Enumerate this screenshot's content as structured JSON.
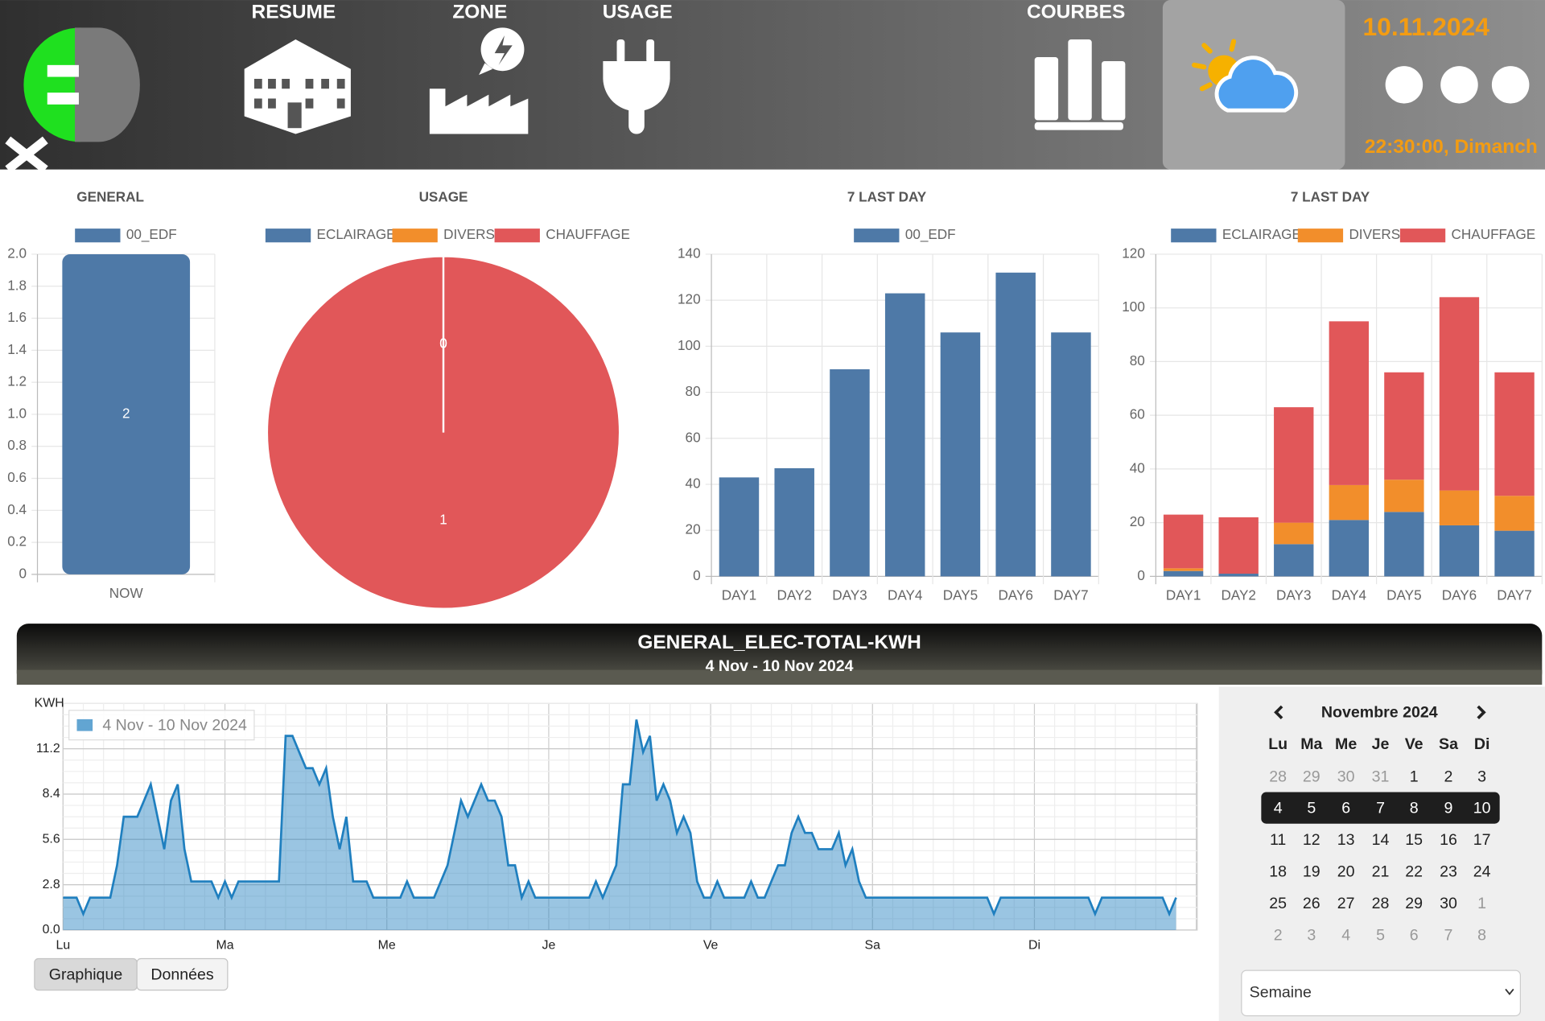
{
  "header": {
    "nav": [
      "RESUME",
      "ZONE",
      "USAGE",
      "COURBES"
    ],
    "date": "10.11.2024",
    "time": "22:30:00, Dimanch"
  },
  "chart_data": [
    {
      "type": "bar",
      "title": "GENERAL",
      "categories": [
        "NOW"
      ],
      "series": [
        {
          "name": "00_EDF",
          "color": "#4e79a7",
          "values": [
            2
          ]
        }
      ],
      "ylim": [
        0,
        2
      ],
      "yticks": [
        0,
        0.2,
        0.4,
        0.6,
        0.8,
        {
          "value": 1,
          "label": "1.0"
        },
        1.2,
        1.4,
        1.6,
        1.8,
        {
          "value": 2,
          "label": "2.0"
        }
      ],
      "grid": true,
      "data_labels": true
    },
    {
      "type": "pie",
      "title": "USAGE",
      "categories": [
        "ECLAIRAGE",
        "DIVERS",
        "CHAUFFAGE"
      ],
      "values": [
        0,
        0,
        1
      ],
      "colors": [
        "#4e79a7",
        "#f28e2b",
        "#e15759"
      ],
      "data_labels": true
    },
    {
      "type": "bar",
      "title": "7 LAST DAY",
      "categories": [
        "DAY1",
        "DAY2",
        "DAY3",
        "DAY4",
        "DAY5",
        "DAY6",
        "DAY7"
      ],
      "series": [
        {
          "name": "00_EDF",
          "color": "#4e79a7",
          "values": [
            43,
            47,
            90,
            123,
            106,
            132,
            106
          ]
        }
      ],
      "ylim": [
        0,
        140
      ],
      "yticks": [
        0,
        20,
        40,
        60,
        80,
        100,
        120,
        140
      ],
      "grid": true
    },
    {
      "type": "bar",
      "title": "7 LAST DAY",
      "stacked": true,
      "categories": [
        "DAY1",
        "DAY2",
        "DAY3",
        "DAY4",
        "DAY5",
        "DAY6",
        "DAY7"
      ],
      "series": [
        {
          "name": "ECLAIRAGE",
          "color": "#4e79a7",
          "values": [
            2,
            1,
            12,
            21,
            24,
            19,
            17
          ]
        },
        {
          "name": "DIVERS",
          "color": "#f28e2b",
          "values": [
            1,
            0,
            8,
            13,
            12,
            13,
            13
          ]
        },
        {
          "name": "CHAUFFAGE",
          "color": "#e15759",
          "values": [
            20,
            21,
            43,
            61,
            40,
            72,
            46
          ]
        }
      ],
      "ylim": [
        0,
        120
      ],
      "yticks": [
        0,
        20,
        40,
        60,
        80,
        100,
        120
      ],
      "grid": true
    },
    {
      "type": "area",
      "title": "GENERAL_ELEC-TOTAL-KWH",
      "subtitle": "4 Nov - 10 Nov 2024",
      "y_label": "KWH",
      "categories": [
        "Lu",
        "Ma",
        "Me",
        "Je",
        "Ve",
        "Sa",
        "Di"
      ],
      "series": [
        {
          "name": "4 Nov - 10 Nov 2024",
          "color": "#1f7fbf",
          "values": [
            [
              2,
              2,
              2,
              1,
              2,
              2,
              2,
              2,
              4,
              7,
              7,
              7,
              8,
              9,
              7,
              5,
              8,
              9,
              5,
              3,
              3,
              3,
              3,
              2
            ],
            [
              3,
              2,
              3,
              3,
              3,
              3,
              3,
              3,
              3,
              12,
              12,
              11,
              10,
              10,
              9,
              10,
              7,
              5,
              7,
              3,
              3,
              3,
              2,
              2
            ],
            [
              2,
              2,
              2,
              3,
              2,
              2,
              2,
              2,
              3,
              4,
              6,
              8,
              7,
              8,
              9,
              8,
              8,
              7,
              4,
              4,
              2,
              3,
              2,
              2
            ],
            [
              2,
              2,
              2,
              2,
              2,
              2,
              2,
              3,
              2,
              3,
              4,
              9,
              9,
              13,
              11,
              12,
              8,
              9,
              8,
              6,
              7,
              6,
              3,
              2
            ],
            [
              2,
              3,
              2,
              2,
              2,
              2,
              3,
              2,
              2,
              3,
              4,
              4,
              6,
              7,
              6,
              6,
              5,
              5,
              5,
              6,
              4,
              5,
              3,
              2
            ],
            [
              2,
              2,
              2,
              2,
              2,
              2,
              2,
              2,
              2,
              2,
              2,
              2,
              2,
              2,
              2,
              2,
              2,
              2,
              1,
              2,
              2,
              2,
              2,
              2
            ],
            [
              2,
              2,
              2,
              2,
              2,
              2,
              2,
              2,
              2,
              1,
              2,
              2,
              2,
              2,
              2,
              2,
              2,
              2,
              2,
              2,
              1,
              2
            ]
          ]
        }
      ],
      "ylim": [
        0,
        14
      ],
      "yticks": [
        {
          "value": 0,
          "label": "0.0"
        },
        2.8,
        5.6,
        8.4,
        11.2
      ],
      "grid": true
    }
  ],
  "calendar": {
    "month": "Novembre 2024",
    "weekdays": [
      "Lu",
      "Ma",
      "Me",
      "Je",
      "Ve",
      "Sa",
      "Di"
    ],
    "weeks": [
      [
        28,
        29,
        30,
        31,
        1,
        2,
        3
      ],
      [
        4,
        5,
        6,
        7,
        8,
        9,
        10
      ],
      [
        11,
        12,
        13,
        14,
        15,
        16,
        17
      ],
      [
        18,
        19,
        20,
        21,
        22,
        23,
        24
      ],
      [
        25,
        26,
        27,
        28,
        29,
        30,
        1
      ],
      [
        2,
        3,
        4,
        5,
        6,
        7,
        8
      ]
    ],
    "period": "Semaine"
  },
  "buttons": [
    "Graphique",
    "Données"
  ]
}
